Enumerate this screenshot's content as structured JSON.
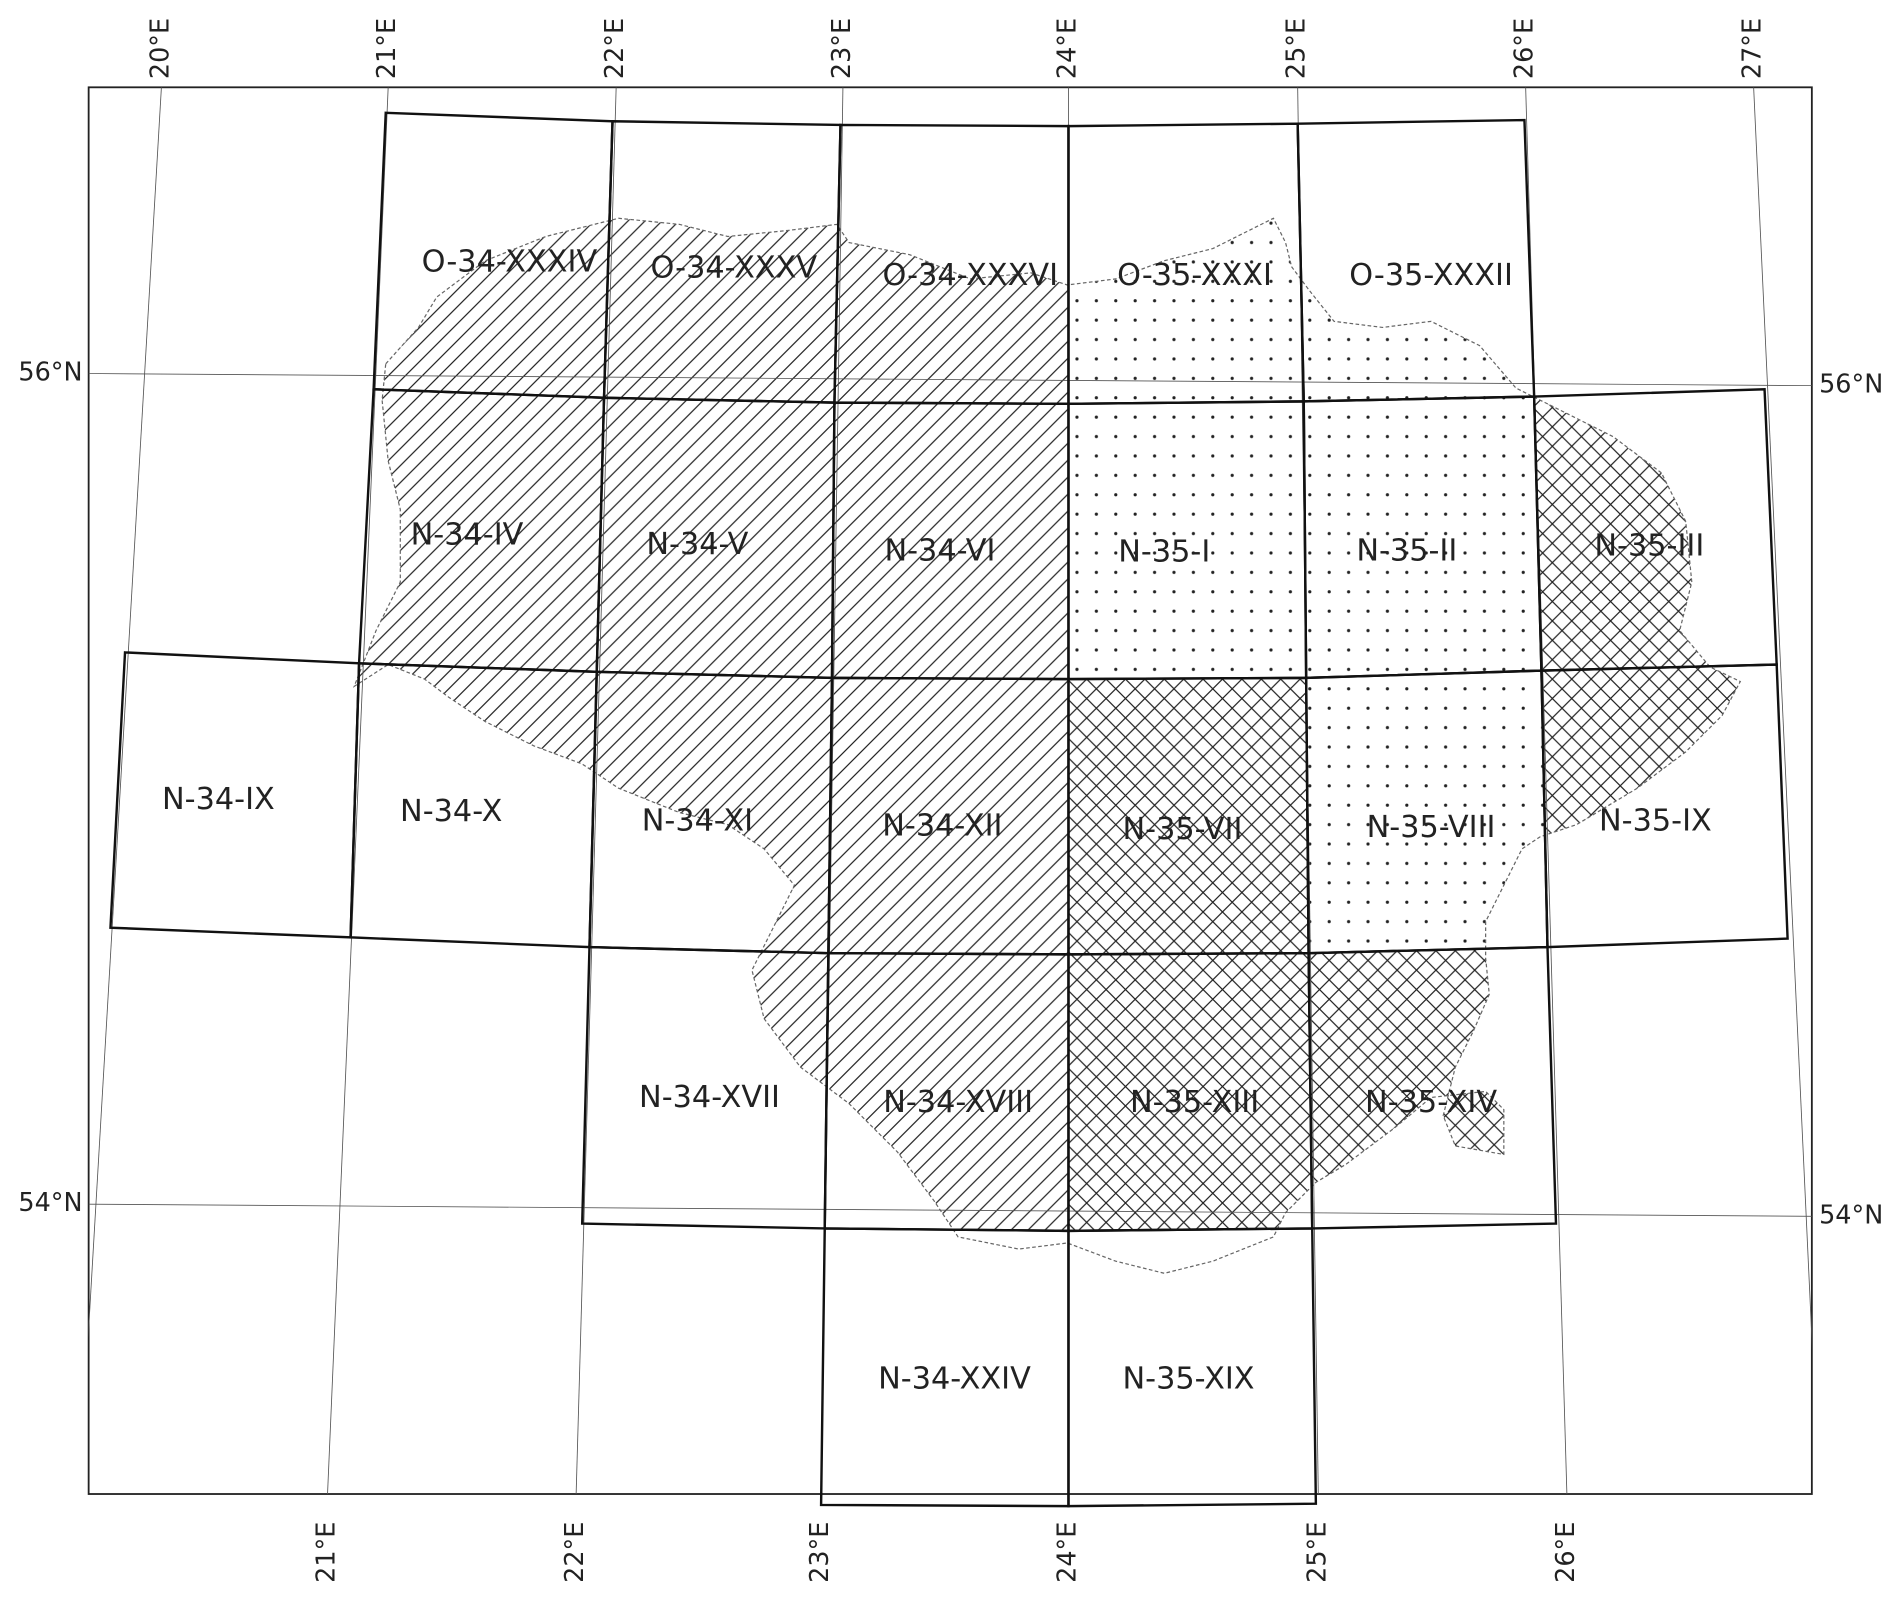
{
  "graticule": {
    "top": [
      "20°E",
      "21°E",
      "22°E",
      "23°E",
      "24°E",
      "25°E",
      "26°E",
      "27°E"
    ],
    "bottom": [
      "21°E",
      "22°E",
      "23°E",
      "24°E",
      "25°E",
      "26°E"
    ],
    "left": [
      "56°N",
      "54°N"
    ],
    "right": [
      "56°N",
      "54°N"
    ]
  },
  "sheets": [
    "O-34-XXXIV",
    "O-34-XXXV",
    "O-34-XXXVI",
    "O-35-XXXI",
    "O-35-XXXII",
    "N-34-IV",
    "N-34-V",
    "N-34-VI",
    "N-35-I",
    "N-35-II",
    "N-35-III",
    "N-34-IX",
    "N-34-X",
    "N-34-XI",
    "N-34-XII",
    "N-35-VII",
    "N-35-VIII",
    "N-35-IX",
    "N-34-XVII",
    "N-34-XVIII",
    "N-35-XIII",
    "N-35-XIV",
    "N-34-XXIV",
    "N-35-XIX"
  ]
}
